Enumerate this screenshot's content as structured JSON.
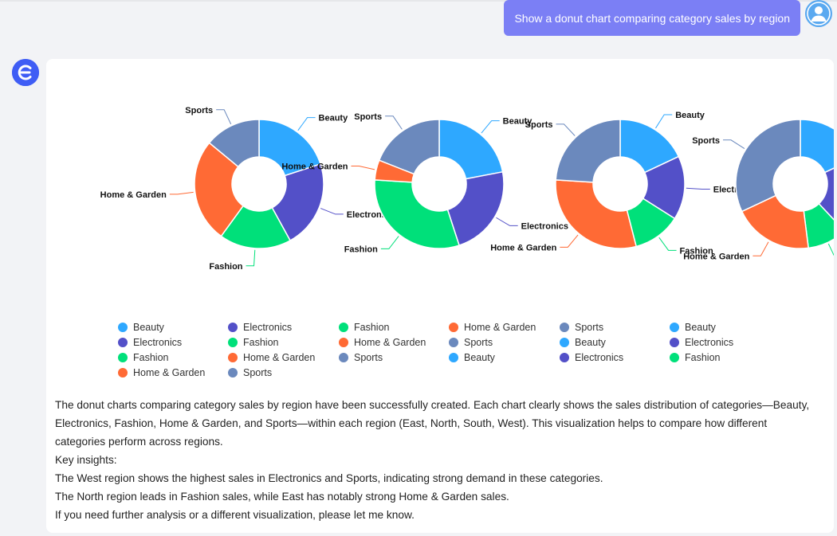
{
  "user_message": "Show a donut chart comparing category sales by region",
  "colors": {
    "Beauty": "#2ea8ff",
    "Electronics": "#5350c8",
    "Fashion": "#00e07a",
    "Home & Garden": "#ff6a35",
    "Sports": "#6b89bd",
    "user_bubble": "#7b7ff5",
    "bot_avatar": "#3f5df5"
  },
  "chart_data": {
    "type": "pie",
    "subtype": "donut",
    "charts": [
      {
        "categories": [
          "Beauty",
          "Electronics",
          "Fashion",
          "Home & Garden",
          "Sports"
        ],
        "values": [
          20,
          22,
          18,
          26,
          14
        ]
      },
      {
        "categories": [
          "Beauty",
          "Electronics",
          "Fashion",
          "Home & Garden",
          "Sports"
        ],
        "values": [
          22,
          23,
          31,
          5,
          19
        ]
      },
      {
        "categories": [
          "Beauty",
          "Electronics",
          "Fashion",
          "Home & Garden",
          "Sports"
        ],
        "values": [
          18,
          16,
          12,
          30,
          24
        ]
      },
      {
        "categories": [
          "Beauty",
          "Electronics",
          "Fashion",
          "Home & Garden",
          "Sports"
        ],
        "values": [
          18,
          20,
          10,
          20,
          32
        ]
      }
    ],
    "legend": [
      [
        "Beauty",
        "Electronics",
        "Fashion",
        "Home & Garden"
      ],
      [
        "Electronics",
        "Fashion",
        "Home & Garden",
        "Sports"
      ],
      [
        "Fashion",
        "Home & Garden",
        "Sports"
      ],
      [
        "Home & Garden",
        "Sports",
        "Beauty"
      ],
      [
        "Sports",
        "Beauty",
        "Electronics"
      ],
      [
        "Beauty",
        "Electronics",
        "Fashion"
      ]
    ]
  },
  "answer": {
    "lines": [
      "The donut charts comparing category sales by region have been successfully created. Each chart clearly shows the sales distribution of categories—Beauty, Electronics, Fashion, Home & Garden, and Sports—within each region (East, North, South, West). This visualization helps to compare how different categories perform across regions.",
      "Key insights:",
      "The West region shows the highest sales in Electronics and Sports, indicating strong demand in these categories.",
      "The North region leads in Fashion sales, while East has notably strong Home & Garden sales.",
      "If you need further analysis or a different visualization, please let me know."
    ]
  }
}
